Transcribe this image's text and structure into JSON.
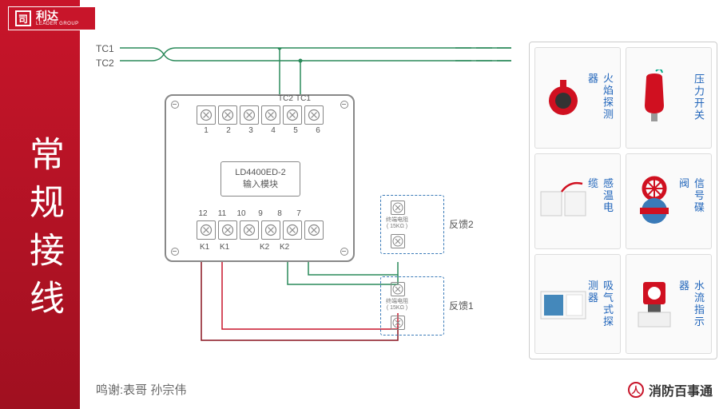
{
  "brand": {
    "name": "利达",
    "sub": "LEADER GROUP"
  },
  "title": "常规接线",
  "credit": "鸣谢:表哥  孙宗伟",
  "footer": "消防百事通",
  "bus": {
    "l1": "TC1",
    "l2": "TC2"
  },
  "module": {
    "model": "LD4400ED-2",
    "subtitle": "输入模块",
    "top_tc": [
      "TC2",
      "TC1"
    ],
    "top_nums": [
      "1",
      "2",
      "3",
      "4",
      "5",
      "6"
    ],
    "bot_nums": [
      "12",
      "11",
      "10",
      "9",
      "8",
      "7"
    ],
    "bot_labels": [
      "K1",
      "K1",
      "",
      "K2",
      "K2",
      ""
    ]
  },
  "feedback": {
    "fb1": "反馈1",
    "fb2": "反馈2",
    "res": "终端电阻",
    "res_val": "( 15KΩ )"
  },
  "gallery": [
    {
      "label": "火焰探测器",
      "color": "#d01020",
      "shape": "flame"
    },
    {
      "label": "压力开关",
      "color": "#d01020",
      "shape": "pressure"
    },
    {
      "label": "感温电缆",
      "color": "#e8e8e8",
      "shape": "cable"
    },
    {
      "label": "信号碟阀",
      "color": "#d01020",
      "shape": "valve"
    },
    {
      "label": "吸气式探测器",
      "color": "#4488bb",
      "shape": "aspirate"
    },
    {
      "label": "水流指示器",
      "color": "#d01020",
      "shape": "flow"
    }
  ],
  "colors": {
    "red": "#c8152a",
    "blue": "#3a7ab8",
    "green": "#2a8a5a",
    "darkred": "#8a1520",
    "gray": "#888"
  }
}
